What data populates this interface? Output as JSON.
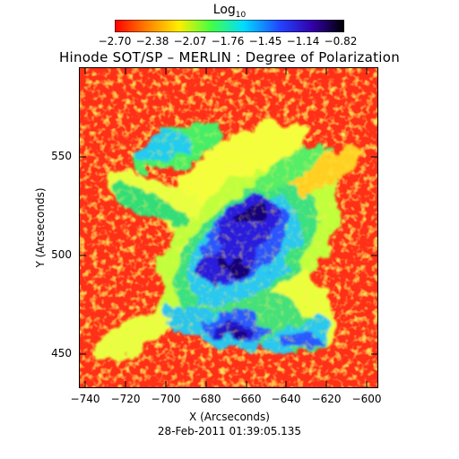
{
  "colorbar": {
    "title": "Log",
    "title_sub": "10",
    "ticks": [
      "−2.70",
      "−2.38",
      "−2.07",
      "−1.76",
      "−1.45",
      "−1.14",
      "−0.82"
    ],
    "range": [
      -2.7,
      -0.82
    ],
    "colors": [
      "#ff2a1a",
      "#ffb000",
      "#e6ff3a",
      "#33dd55",
      "#2ad0ff",
      "#2a55ff",
      "#1a00cc",
      "#0a0050"
    ]
  },
  "title": "Hinode SOT/SP – MERLIN : Degree of Polarization",
  "axes": {
    "xlabel": "X (Arcseconds)",
    "ylabel": "Y (Arcseconds)",
    "xticks": [
      "−740",
      "−720",
      "−700",
      "−680",
      "−660",
      "−640",
      "−620",
      "−600"
    ],
    "yticks": [
      "550",
      "500",
      "450"
    ],
    "xrange": [
      -742,
      -592
    ],
    "yrange": [
      432,
      592
    ]
  },
  "timestamp": "28-Feb-2011 01:39:05.135",
  "image": {
    "description_colors": {
      "background": "#ff3b1e",
      "core_dark": "#14007a",
      "core": "#2a1adb"
    }
  }
}
